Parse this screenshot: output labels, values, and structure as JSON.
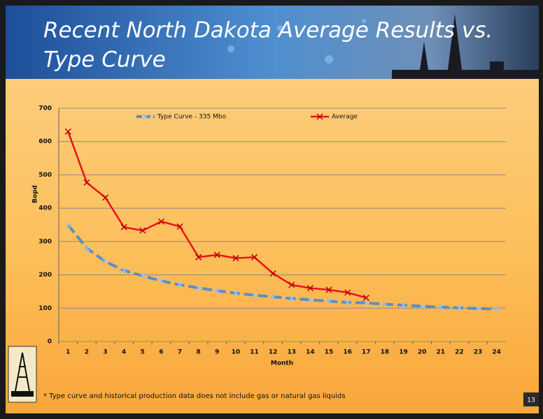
{
  "slide": {
    "title_lines": [
      "Recent North Dakota Average Results vs.",
      "Type Curve"
    ],
    "footnote": "* Type curve and historical production data does not include gas or natural gas liquids",
    "page_number": "13"
  },
  "chart_data": {
    "type": "line",
    "x_label": "Month",
    "y_label": "Bopd",
    "categories": [
      1,
      2,
      3,
      4,
      5,
      6,
      7,
      8,
      9,
      10,
      11,
      12,
      13,
      14,
      15,
      16,
      17,
      18,
      19,
      20,
      21,
      22,
      23,
      24
    ],
    "series": [
      {
        "name": "Type Curve - 335 Mbo",
        "color": "#5b8ec4",
        "dashed": true,
        "values": [
          350,
          280,
          240,
          213,
          197,
          182,
          170,
          161,
          152,
          145,
          139,
          134,
          129,
          125,
          121,
          117,
          116,
          112,
          109,
          106,
          103,
          101,
          99,
          97
        ]
      },
      {
        "name": "Average",
        "color": "#e8141a",
        "dashed": false,
        "values": [
          630,
          477,
          432,
          343,
          333,
          360,
          345,
          253,
          260,
          250,
          253,
          204,
          170,
          160,
          155,
          147,
          131,
          null,
          null,
          null,
          null,
          null,
          null,
          null
        ]
      }
    ],
    "ylim": [
      0,
      700
    ],
    "yticks": [
      0,
      100,
      200,
      300,
      400,
      500,
      600,
      700
    ],
    "grid": true,
    "legend": "top"
  }
}
